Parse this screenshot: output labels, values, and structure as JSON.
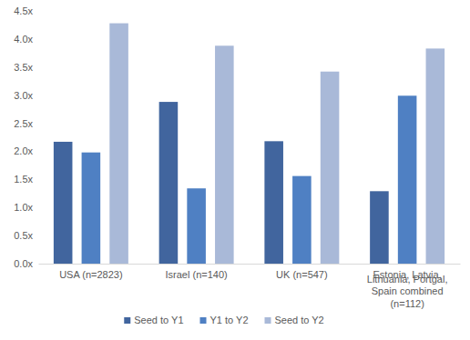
{
  "chart_data": {
    "type": "bar",
    "categories": [
      "USA (n=2823)",
      "Israel (n=140)",
      "UK (n=547)",
      "Estonia, Latvia, Lithuania, Portgal, Spain combined (n=112)"
    ],
    "series": [
      {
        "name": "Seed to Y1",
        "color": "#41659e",
        "values": [
          2.17,
          2.88,
          2.18,
          1.29
        ]
      },
      {
        "name": "Y1 to Y2",
        "color": "#4f80c3",
        "values": [
          1.98,
          1.34,
          1.56,
          2.99
        ]
      },
      {
        "name": "Seed to Y2",
        "color": "#a9b9d8",
        "values": [
          4.28,
          3.88,
          3.42,
          3.83
        ]
      }
    ],
    "ylim": [
      0,
      4.5
    ],
    "yticks": [
      {
        "value": 0,
        "label": "0.0x"
      },
      {
        "value": 0.5,
        "label": "0.5x"
      },
      {
        "value": 1,
        "label": "1.0x"
      },
      {
        "value": 1.5,
        "label": "1.5x"
      },
      {
        "value": 2,
        "label": "2.0x"
      },
      {
        "value": 2.5,
        "label": "2.5x"
      },
      {
        "value": 3,
        "label": "3.0x"
      },
      {
        "value": 3.5,
        "label": "3.5x"
      },
      {
        "value": 4,
        "label": "4.0x"
      },
      {
        "value": 4.5,
        "label": "4.5x"
      }
    ],
    "grid": false,
    "legend": "bottom"
  }
}
